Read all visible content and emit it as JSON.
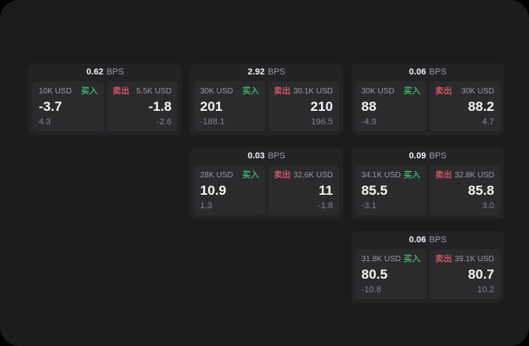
{
  "colors": {
    "panel_bg": "#1c1c1e",
    "card_bg": "#232326",
    "tile_bg": "#2b2b2e",
    "buy_green": "#41b065",
    "sell_red": "#d25562",
    "label_gray": "#9a9aa0",
    "sub_gray": "#83838a",
    "value_white": "#f5f5f7"
  },
  "labels": {
    "bps_unit": "BPS",
    "buy": "买入",
    "sell": "卖出"
  },
  "layout_slots": {
    "note": "col/row grid positions of each quote card"
  },
  "cards": [
    {
      "col": 1,
      "row": 1,
      "bps": "0.62",
      "buy": {
        "amount": "10K USD",
        "value": "-3.7",
        "sub": "4.3"
      },
      "sell": {
        "amount": "5.5K USD",
        "value": "-1.8",
        "sub": "-2.6"
      }
    },
    {
      "col": 2,
      "row": 1,
      "bps": "2.92",
      "buy": {
        "amount": "30K USD",
        "value": "201",
        "sub": "-188.1"
      },
      "sell": {
        "amount": "30.1K USD",
        "value": "210",
        "sub": "196.5"
      }
    },
    {
      "col": 3,
      "row": 1,
      "bps": "0.06",
      "buy": {
        "amount": "30K USD",
        "value": "88",
        "sub": "-4.9"
      },
      "sell": {
        "amount": "30K USD",
        "value": "88.2",
        "sub": "4.7"
      }
    },
    {
      "col": 2,
      "row": 2,
      "bps": "0.03",
      "buy": {
        "amount": "28K USD",
        "value": "10.9",
        "sub": "1.3"
      },
      "sell": {
        "amount": "32.6K USD",
        "value": "11",
        "sub": "-1.8"
      }
    },
    {
      "col": 3,
      "row": 2,
      "bps": "0.09",
      "buy": {
        "amount": "34.1K USD",
        "value": "85.5",
        "sub": "-3.1"
      },
      "sell": {
        "amount": "32.8K USD",
        "value": "85.8",
        "sub": "3.0"
      }
    },
    {
      "col": 3,
      "row": 3,
      "bps": "0.06",
      "buy": {
        "amount": "31.8K USD",
        "value": "80.5",
        "sub": "-10.8"
      },
      "sell": {
        "amount": "39.1K USD",
        "value": "80.7",
        "sub": "10.2"
      }
    }
  ]
}
